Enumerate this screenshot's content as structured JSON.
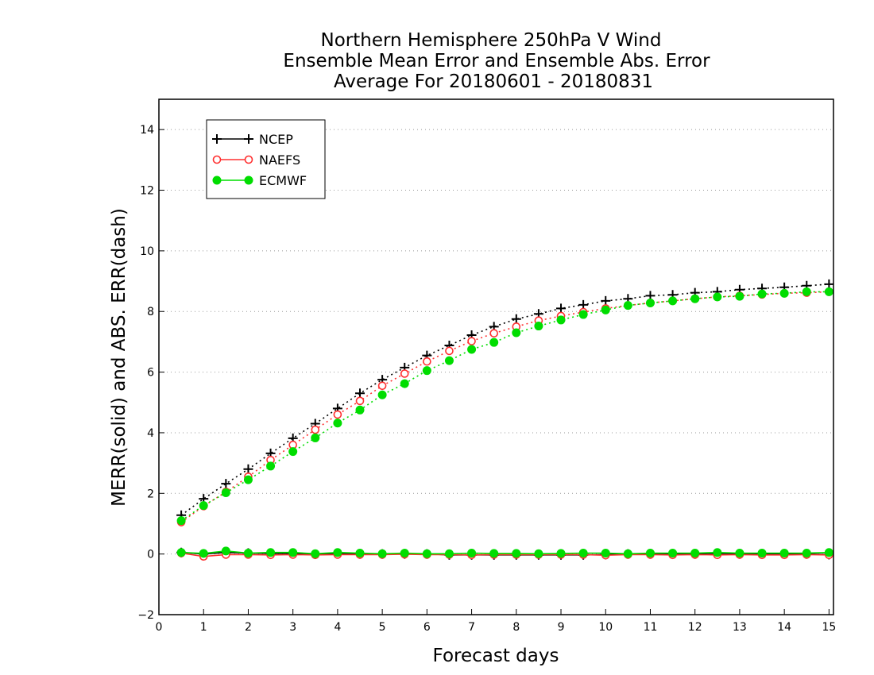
{
  "chart_data": {
    "type": "line",
    "title": [
      "Northern Hemisphere 250hPa V Wind",
      "Ensemble Mean Error and Ensemble Abs. Error",
      "Average For 20180601 - 20180831"
    ],
    "xlabel": "Forecast days",
    "ylabel": "MERR(solid) and ABS. ERR(dash)",
    "xlim": [
      0,
      15.1
    ],
    "ylim": [
      -2,
      15
    ],
    "xticks": [
      0,
      1,
      2,
      3,
      4,
      5,
      6,
      7,
      8,
      9,
      10,
      11,
      12,
      13,
      14,
      15
    ],
    "yticks": [
      -2,
      0,
      2,
      4,
      6,
      8,
      10,
      12,
      14
    ],
    "grid": "horizontal dotted",
    "legend_position": "top-left",
    "x": [
      0.5,
      1,
      1.5,
      2,
      2.5,
      3,
      3.5,
      4,
      4.5,
      5,
      5.5,
      6,
      6.5,
      7,
      7.5,
      8,
      8.5,
      9,
      9.5,
      10,
      10.5,
      11,
      11.5,
      12,
      12.5,
      13,
      13.5,
      14,
      14.5,
      15
    ],
    "series": [
      {
        "name": "NCEP",
        "color": "#000000",
        "marker": "plus",
        "abs_err": [
          1.28,
          1.82,
          2.32,
          2.8,
          3.32,
          3.82,
          4.3,
          4.8,
          5.3,
          5.75,
          6.15,
          6.55,
          6.88,
          7.22,
          7.5,
          7.75,
          7.92,
          8.1,
          8.22,
          8.35,
          8.42,
          8.52,
          8.55,
          8.62,
          8.65,
          8.72,
          8.76,
          8.8,
          8.85,
          8.9
        ],
        "mean_err": [
          0.05,
          0.0,
          0.05,
          0.03,
          0.02,
          0.02,
          -0.01,
          0.01,
          0.0,
          0.0,
          0.0,
          0.0,
          -0.03,
          -0.03,
          -0.03,
          -0.03,
          -0.03,
          -0.03,
          -0.03,
          -0.02,
          0.0,
          0.0,
          0.0,
          0.0,
          0.0,
          0.0,
          0.0,
          0.0,
          0.0,
          -0.02
        ]
      },
      {
        "name": "NAEFS",
        "color": "#ff3030",
        "marker": "open-circle",
        "abs_err": [
          1.05,
          1.58,
          2.05,
          2.55,
          3.1,
          3.6,
          4.1,
          4.6,
          5.05,
          5.55,
          5.95,
          6.35,
          6.7,
          7.02,
          7.28,
          7.5,
          7.7,
          7.85,
          7.98,
          8.1,
          8.2,
          8.28,
          8.35,
          8.42,
          8.48,
          8.52,
          8.56,
          8.6,
          8.62,
          8.65
        ],
        "mean_err": [
          0.03,
          -0.08,
          -0.02,
          -0.02,
          -0.03,
          -0.02,
          -0.03,
          -0.02,
          -0.02,
          -0.02,
          -0.01,
          -0.02,
          -0.02,
          -0.03,
          -0.02,
          -0.02,
          -0.02,
          -0.02,
          -0.02,
          -0.04,
          -0.02,
          -0.02,
          -0.03,
          -0.02,
          -0.03,
          -0.02,
          -0.03,
          -0.03,
          -0.02,
          -0.03
        ]
      },
      {
        "name": "ECMWF",
        "color": "#00dd00",
        "marker": "filled-circle",
        "abs_err": [
          1.1,
          1.6,
          2.02,
          2.45,
          2.9,
          3.38,
          3.83,
          4.32,
          4.75,
          5.25,
          5.62,
          6.05,
          6.38,
          6.75,
          6.98,
          7.3,
          7.52,
          7.72,
          7.9,
          8.05,
          8.2,
          8.28,
          8.35,
          8.42,
          8.48,
          8.5,
          8.58,
          8.6,
          8.65,
          8.65
        ],
        "mean_err": [
          0.05,
          0.02,
          0.1,
          0.03,
          0.05,
          0.05,
          0.01,
          0.05,
          0.03,
          0.01,
          0.03,
          0.01,
          0.01,
          0.03,
          0.02,
          0.02,
          0.01,
          0.02,
          0.03,
          0.03,
          0.01,
          0.03,
          0.03,
          0.03,
          0.05,
          0.03,
          0.03,
          0.03,
          0.03,
          0.05
        ]
      }
    ]
  }
}
